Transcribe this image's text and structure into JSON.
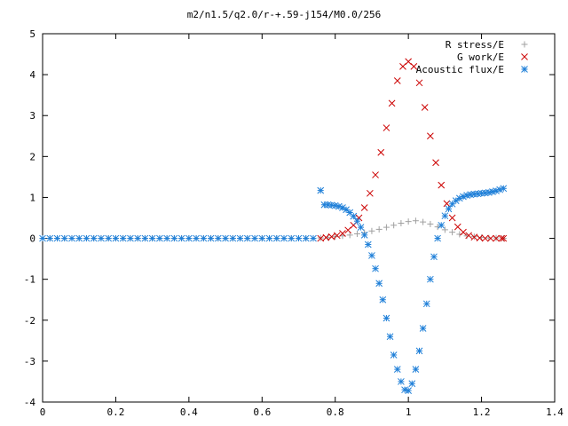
{
  "chart_data": {
    "type": "scatter",
    "title": "m2/n1.5/q2.0/r-+.59-j154/M0.0/256",
    "xlabel": "",
    "ylabel": "",
    "xlim": [
      0,
      1.4
    ],
    "ylim": [
      -4,
      5
    ],
    "xticks": [
      "0",
      "0.2",
      "0.4",
      "0.6",
      "0.8",
      "1",
      "1.2",
      "1.4"
    ],
    "yticks": [
      "-4",
      "-3",
      "-2",
      "-1",
      "0",
      "1",
      "2",
      "3",
      "4",
      "5"
    ],
    "grid": false,
    "legend_position": "top-right",
    "series": [
      {
        "name": "R stress/E",
        "marker": "plus",
        "color": "#a0a0a0",
        "x": [
          0.0,
          0.02,
          0.04,
          0.06,
          0.08,
          0.1,
          0.12,
          0.14,
          0.16,
          0.18,
          0.2,
          0.22,
          0.24,
          0.26,
          0.28,
          0.3,
          0.32,
          0.34,
          0.36,
          0.38,
          0.4,
          0.42,
          0.44,
          0.46,
          0.48,
          0.5,
          0.52,
          0.54,
          0.56,
          0.58,
          0.6,
          0.62,
          0.64,
          0.66,
          0.68,
          0.7,
          0.72,
          0.74,
          0.76,
          0.78,
          0.8,
          0.82,
          0.84,
          0.86,
          0.88,
          0.9,
          0.92,
          0.94,
          0.96,
          0.98,
          1.0,
          1.02,
          1.04,
          1.06,
          1.08,
          1.1,
          1.12,
          1.14,
          1.16,
          1.18,
          1.2,
          1.22,
          1.24,
          1.26
        ],
        "y": [
          0,
          0,
          0,
          0,
          0,
          0,
          0,
          0,
          0,
          0,
          0,
          0,
          0,
          0,
          0,
          0,
          0,
          0,
          0,
          0,
          0,
          0,
          0,
          0,
          0,
          0,
          0,
          0,
          0,
          0,
          0,
          0,
          0,
          0,
          0,
          0,
          0,
          0,
          0.01,
          0.02,
          0.04,
          0.06,
          0.08,
          0.11,
          0.14,
          0.18,
          0.22,
          0.27,
          0.32,
          0.37,
          0.41,
          0.43,
          0.4,
          0.35,
          0.28,
          0.21,
          0.15,
          0.1,
          0.06,
          0.04,
          0.02,
          0.01,
          0.01,
          0.0
        ]
      },
      {
        "name": "G work/E",
        "marker": "cross",
        "color": "#cc0000",
        "x": [
          0.76,
          0.775,
          0.79,
          0.805,
          0.82,
          0.835,
          0.85,
          0.865,
          0.88,
          0.895,
          0.91,
          0.925,
          0.94,
          0.955,
          0.97,
          0.985,
          1.0,
          1.015,
          1.03,
          1.045,
          1.06,
          1.075,
          1.09,
          1.105,
          1.12,
          1.135,
          1.15,
          1.165,
          1.18,
          1.195,
          1.21,
          1.225,
          1.24,
          1.255,
          1.26
        ],
        "y": [
          0.0,
          0.02,
          0.04,
          0.07,
          0.12,
          0.2,
          0.32,
          0.5,
          0.75,
          1.1,
          1.55,
          2.1,
          2.7,
          3.3,
          3.85,
          4.2,
          4.32,
          4.2,
          3.8,
          3.2,
          2.5,
          1.85,
          1.3,
          0.85,
          0.5,
          0.28,
          0.15,
          0.07,
          0.03,
          0.01,
          0.0,
          0.0,
          0.0,
          0.0,
          0.0
        ]
      },
      {
        "name": "Acoustic flux/E",
        "marker": "star",
        "color": "#1e7fd8",
        "x": [
          0.0,
          0.02,
          0.04,
          0.06,
          0.08,
          0.1,
          0.12,
          0.14,
          0.16,
          0.18,
          0.2,
          0.22,
          0.24,
          0.26,
          0.28,
          0.3,
          0.32,
          0.34,
          0.36,
          0.38,
          0.4,
          0.42,
          0.44,
          0.46,
          0.48,
          0.5,
          0.52,
          0.54,
          0.56,
          0.58,
          0.6,
          0.62,
          0.64,
          0.66,
          0.68,
          0.7,
          0.72,
          0.74,
          0.76,
          0.77,
          0.78,
          0.79,
          0.8,
          0.81,
          0.82,
          0.83,
          0.84,
          0.85,
          0.86,
          0.87,
          0.88,
          0.89,
          0.9,
          0.91,
          0.92,
          0.93,
          0.94,
          0.95,
          0.96,
          0.97,
          0.98,
          0.99,
          1.0,
          1.01,
          1.02,
          1.03,
          1.04,
          1.05,
          1.06,
          1.07,
          1.08,
          1.09,
          1.1,
          1.11,
          1.12,
          1.13,
          1.14,
          1.15,
          1.16,
          1.17,
          1.18,
          1.19,
          1.2,
          1.21,
          1.22,
          1.23,
          1.24,
          1.25,
          1.26
        ],
        "y": [
          0,
          0,
          0,
          0,
          0,
          0,
          0,
          0,
          0,
          0,
          0,
          0,
          0,
          0,
          0,
          0,
          0,
          0,
          0,
          0,
          0,
          0,
          0,
          0,
          0,
          0,
          0,
          0,
          0,
          0,
          0,
          0,
          0,
          0,
          0,
          0,
          0,
          0,
          1.17,
          0.82,
          0.82,
          0.81,
          0.8,
          0.78,
          0.75,
          0.7,
          0.63,
          0.54,
          0.42,
          0.27,
          0.08,
          -0.15,
          -0.42,
          -0.74,
          -1.1,
          -1.5,
          -1.95,
          -2.4,
          -2.85,
          -3.2,
          -3.5,
          -3.7,
          -3.72,
          -3.55,
          -3.2,
          -2.75,
          -2.2,
          -1.6,
          -1.0,
          -0.45,
          0.0,
          0.32,
          0.55,
          0.72,
          0.84,
          0.92,
          0.98,
          1.02,
          1.05,
          1.07,
          1.08,
          1.09,
          1.1,
          1.11,
          1.12,
          1.14,
          1.16,
          1.19,
          1.22
        ]
      }
    ]
  },
  "colors": {
    "background": "#ffffff",
    "axis": "#000000",
    "r_stress": "#a0a0a0",
    "g_work": "#cc0000",
    "acoustic_flux": "#1e7fd8"
  }
}
